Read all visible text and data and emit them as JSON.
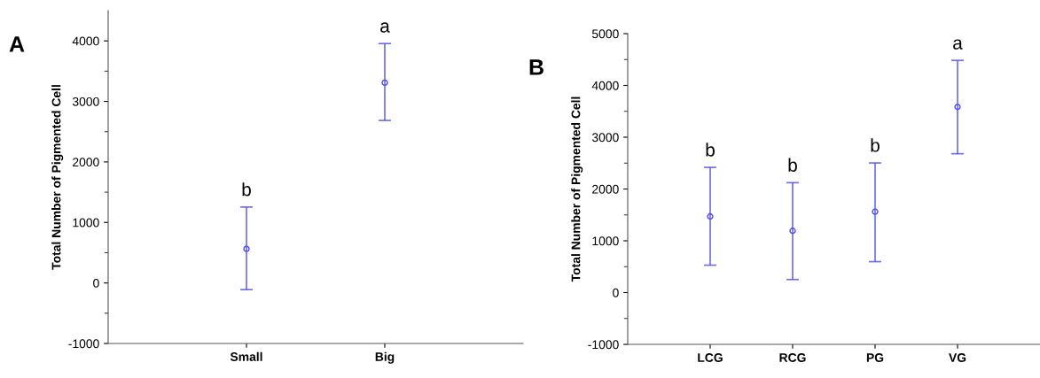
{
  "chart_data": [
    {
      "type": "scatter",
      "title": "A",
      "ylabel": "Total Number of Pigmented Cell",
      "categories": [
        "Small",
        "Big"
      ],
      "series": [
        {
          "color": "#4a4aee",
          "values": [
            563,
            3309
          ],
          "errors": [
            [
              -110,
              1254
            ],
            [
              2685,
              3956
            ]
          ]
        }
      ],
      "ylim": [
        -1000,
        4500
      ],
      "yticks": [
        -1000,
        0,
        1000,
        2000,
        3000,
        4000
      ],
      "marker": "circle",
      "annotations": [
        {
          "text": "b",
          "x": "Small",
          "y": 1254
        },
        {
          "text": "a",
          "x": "Big",
          "y": 3956
        }
      ]
    },
    {
      "type": "scatter",
      "title": "B",
      "ylabel": "Total Number of Pigmented Cell",
      "categories": [
        "LCG",
        "RCG",
        "PG",
        "VG"
      ],
      "series": [
        {
          "color": "#4a4aee",
          "values": [
            1470,
            1193,
            1562,
            3585
          ],
          "errors": [
            [
              529,
              2417
            ],
            [
              252,
              2122
            ],
            [
              597,
              2503
            ],
            [
              2681,
              4483
            ]
          ]
        }
      ],
      "ylim": [
        -1000,
        5000
      ],
      "yticks": [
        -1000,
        0,
        1000,
        2000,
        3000,
        4000,
        5000
      ],
      "marker": "circle",
      "annotations": [
        {
          "text": "b",
          "x": "LCG",
          "y": 2417
        },
        {
          "text": "b",
          "x": "RCG",
          "y": 2122
        },
        {
          "text": "b",
          "x": "PG",
          "y": 2503
        },
        {
          "text": "a",
          "x": "VG",
          "y": 4483
        }
      ]
    }
  ]
}
